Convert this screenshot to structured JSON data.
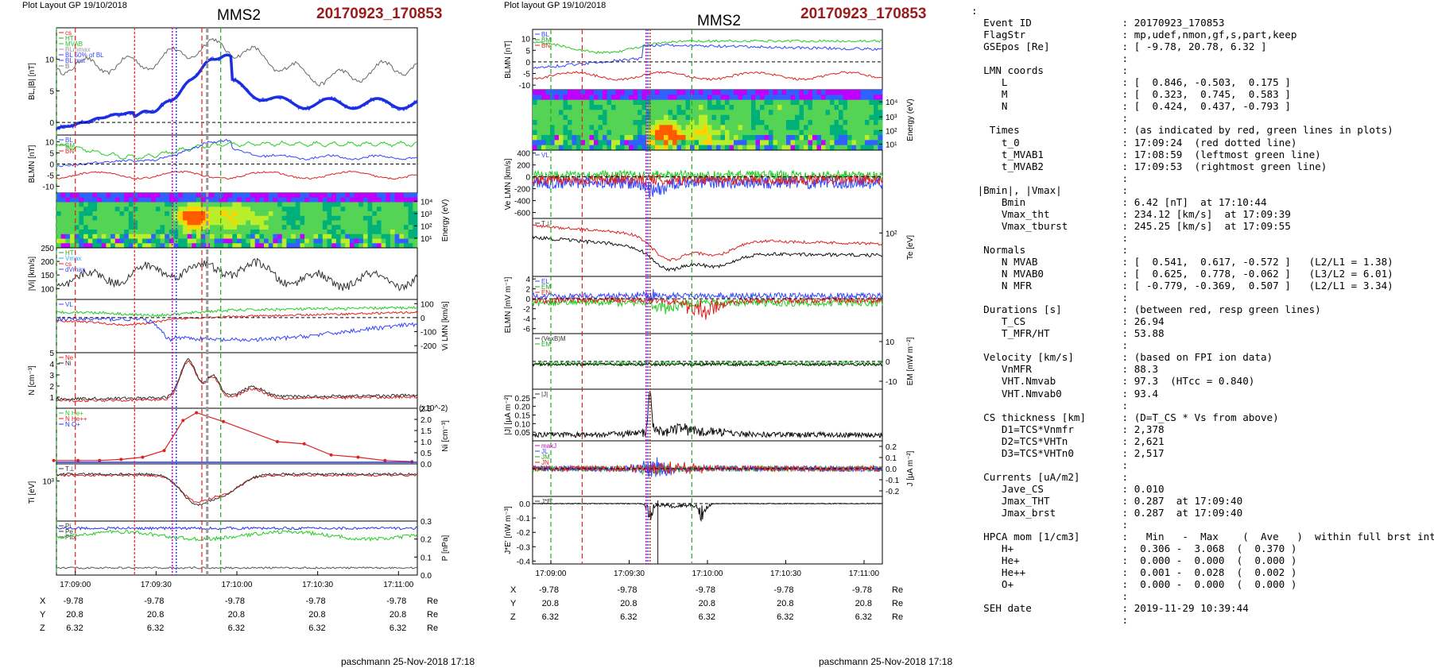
{
  "left": {
    "header_left": "Plot Layout GP 19/10/2018",
    "title": "MMS2",
    "event": "20170923_170853",
    "footer": "paschmann 25-Nov-2018 17:18",
    "time_ticks": [
      "17:09:00",
      "17:09:30",
      "17:10:00",
      "17:10:30",
      "17:11:00"
    ],
    "pos": [
      {
        "name": "X",
        "vals": [
          "-9.78",
          "-9.78",
          "-9.78",
          "-9.78",
          "-9.78"
        ],
        "unit": "Re"
      },
      {
        "name": "Y",
        "vals": [
          "20.8",
          "20.8",
          "20.8",
          "20.8",
          "20.8"
        ],
        "unit": "Re"
      },
      {
        "name": "Z",
        "vals": [
          "6.32",
          "6.32",
          "6.32",
          "6.32",
          "6.32"
        ],
        "unit": "Re"
      }
    ]
  },
  "middle": {
    "header_left": "Plot layout GP 19/10/2018",
    "title": "MMS2",
    "event": "20170923_170853",
    "footer": "paschmann 25-Nov-2018 17:18",
    "time_ticks": [
      "17:09:00",
      "17:09:30",
      "17:10:00",
      "17:10:30",
      "17:11:00"
    ],
    "pos": [
      {
        "name": "X",
        "vals": [
          "-9.78",
          "-9.78",
          "-9.78",
          "-9.78",
          "-9.78"
        ],
        "unit": "Re"
      },
      {
        "name": "Y",
        "vals": [
          "20.8",
          "20.8",
          "20.8",
          "20.8",
          "20.8"
        ],
        "unit": "Re"
      },
      {
        "name": "Z",
        "vals": [
          "6.32",
          "6.32",
          "6.32",
          "6.32",
          "6.32"
        ],
        "unit": "Re"
      }
    ]
  },
  "chart_data": [
    {
      "type": "line",
      "title": "MMS2",
      "subtitle": "20170923_170853",
      "x_range": [
        "17:08:53",
        "17:11:07"
      ],
      "x_ticks": [
        "17:09:00",
        "17:09:30",
        "17:10:00",
        "17:10:30",
        "17:11:00"
      ],
      "panels": [
        {
          "ylabel": "BL,|B| [nT]",
          "ylim": [
            -2,
            15
          ],
          "y_ticks": [
            0,
            5,
            10
          ],
          "legend": [
            "cs",
            "HT",
            "MVAB",
            "BLmmax",
            "BL 50% of BL",
            "BL brst",
            "B"
          ]
        },
        {
          "ylabel": "BLMN [nT]",
          "ylim": [
            -13,
            13
          ],
          "y_ticks": [
            -10,
            -5,
            0,
            5,
            10
          ],
          "legend": [
            "BL",
            "BM",
            "BN"
          ]
        },
        {
          "ylabel": "Energy (eV)",
          "type": "heatmap",
          "y_ticks": [
            "10^1",
            "10^2",
            "10^3",
            "10^4"
          ]
        },
        {
          "ylabel": "|Vi| [km/s]",
          "ylim": [
            60,
            250
          ],
          "y_ticks": [
            100,
            150,
            200,
            250
          ],
          "legend": [
            "HT",
            "Vmax",
            "cs",
            "dVmax"
          ]
        },
        {
          "ylabel": "Vi LMN [km/s]",
          "ylim": [
            -250,
            130
          ],
          "y_ticks": [
            100,
            0,
            -100,
            -200
          ],
          "legend": [
            "VL"
          ]
        },
        {
          "ylabel": "N [cm^-3]",
          "ylim": [
            0,
            5
          ],
          "y_ticks": [
            1,
            2,
            3,
            4,
            5
          ],
          "legend": [
            "Ne",
            "Ni"
          ]
        },
        {
          "ylabel": "Ni [cm^-3]",
          "ylim": [
            0,
            2.5
          ],
          "y_ticks": [
            0.0,
            0.5,
            1.0,
            1.5,
            2.0,
            2.5
          ],
          "y_scale_label": "(x10^-2)",
          "legend": [
            "N He+",
            "N He++",
            "N O+"
          ],
          "series": [
            {
              "name": "N He++",
              "x": [
                -8,
                1,
                9,
                17,
                25,
                33,
                40,
                45,
                55,
                75,
                85,
                95,
                105,
                115,
                125
              ],
              "y": [
                0.15,
                0.15,
                0.15,
                0.2,
                0.3,
                0.6,
                1.95,
                2.3,
                1.9,
                1.0,
                0.9,
                0.4,
                0.3,
                0.15,
                0.1
              ]
            }
          ]
        },
        {
          "ylabel": "Ti [eV]",
          "y_ticks": [
            "10^3"
          ],
          "legend": [
            "T⊥"
          ]
        },
        {
          "ylabel": "P [nPa]",
          "ylim": [
            0,
            0.3
          ],
          "y_ticks": [
            0.0,
            0.1,
            0.2,
            0.3
          ],
          "legend": [
            "Pi",
            "Pe",
            "Ptot"
          ]
        }
      ],
      "markers": {
        "red_dashed_s": [
          -7,
          22,
          45,
          48
        ],
        "green_dashed_s": [
          -7,
          48,
          67,
          78
        ],
        "magenta_s": [
          36,
          37
        ]
      }
    },
    {
      "type": "line",
      "title": "MMS2",
      "subtitle": "20170923_170853",
      "x_ticks": [
        "17:09:00",
        "17:09:30",
        "17:10:00",
        "17:10:30",
        "17:11:00"
      ],
      "panels": [
        {
          "ylabel": "BLMN [nT]",
          "ylim": [
            -12,
            14
          ],
          "y_ticks": [
            -10,
            -5,
            0,
            5,
            10
          ],
          "legend": [
            "BL",
            "BM",
            "BN"
          ]
        },
        {
          "ylabel": "Energy (eV)",
          "type": "heatmap",
          "y_ticks": [
            "10^1",
            "10^2",
            "10^3",
            "10^4"
          ]
        },
        {
          "ylabel": "Ve LMN [km/s]",
          "ylim": [
            -700,
            450
          ],
          "y_ticks": [
            -600,
            -400,
            -200,
            0,
            200,
            400
          ],
          "legend": [
            "VL"
          ]
        },
        {
          "ylabel": "Te [eV]",
          "y_ticks": [
            "10^2"
          ],
          "legend": [
            "T⊥"
          ]
        },
        {
          "ylabel": "ELMN [mV m^-1]",
          "ylim": [
            -7,
            4.5
          ],
          "y_ticks": [
            -6,
            -4,
            -2,
            0,
            2,
            4
          ],
          "legend": [
            "EL",
            "EM",
            "EN"
          ]
        },
        {
          "ylabel": "EM [mW m^-2]",
          "ylim": [
            -14,
            14
          ],
          "y_ticks": [
            -10,
            0,
            10
          ],
          "legend": [
            "(VexB)M",
            "EM"
          ]
        },
        {
          "ylabel": "|J| [µA m^-2]",
          "ylim": [
            0,
            0.3
          ],
          "y_ticks": [
            0.05,
            0.1,
            0.15,
            0.2,
            0.25
          ],
          "legend": [
            "|J|"
          ]
        },
        {
          "ylabel": "J [µA m^-2]",
          "ylim": [
            -0.25,
            0.25
          ],
          "y_ticks": [
            0.2,
            0.1,
            0.0,
            -0.1,
            -0.2
          ],
          "legend": [
            "maxJ",
            "JL",
            "JM",
            "JN"
          ]
        },
        {
          "ylabel": "J*E' [nW m^-3]",
          "ylim": [
            -0.42,
            0.05
          ],
          "y_ticks": [
            0.0,
            -0.1,
            -0.2,
            -0.3,
            -0.4
          ],
          "legend": [
            "J*E'"
          ]
        }
      ]
    }
  ],
  "info_lines": [
    ":",
    "  Event ID               : 20170923_170853",
    "  FlagStr                : mp,udef,nmon,gf,s,part,keep",
    "  GSEpos [Re]            : [ -9.78, 20.78, 6.32 ]",
    "                         :",
    "  LMN coords             :",
    "     L                   : [  0.846, -0.503,  0.175 ]",
    "     M                   : [  0.323,  0.745,  0.583 ]",
    "     N                   : [  0.424,  0.437, -0.793 ]",
    "                         :",
    "   Times                 : (as indicated by red, green lines in plots)",
    "     t_0                 : 17:09:24  (red dotted line)",
    "     t_MVAB1             : 17:08:59  (leftmost green line)",
    "     t_MVAB2             : 17:09:53  (rightmost green line)",
    "                         :",
    " |Bmin|, |Vmax|          :",
    "     Bmin                : 6.42 [nT]  at 17:10:44",
    "     Vmax_tht            : 234.12 [km/s]  at 17:09:39",
    "     Vmax_tburst         : 245.25 [km/s]  at 17:09:55",
    "                         :",
    "  Normals                :",
    "     N MVAB              : [  0.541,  0.617, -0.572 ]   (L2/L1 = 1.38)",
    "     N MVAB0             : [  0.625,  0.778, -0.062 ]   (L3/L2 = 6.01)",
    "     N MFR               : [ -0.779, -0.369,  0.507 ]   (L2/L1 = 3.34)",
    "                         :",
    "  Durations [s]          : (between red, resp green lines)",
    "     T_CS                : 26.94",
    "     T_MFR/HT            : 53.88",
    "                         :",
    "  Velocity [km/s]        : (based on FPI ion data)",
    "     VnMFR               : 88.3",
    "     VHT.Nmvab           : 97.3  (HTcc = 0.840)",
    "     VHT.Nmvab0          : 93.4",
    "                         :",
    "  CS thickness [km]      : (D=T_CS * Vs from above)",
    "     D1=TCS*Vnmfr        : 2,378",
    "     D2=TCS*VHTn         : 2,621",
    "     D3=TCS*VHTn0        : 2,517",
    "                         :",
    "  Currents [uA/m2]       :",
    "     Jave_CS             : 0.010",
    "     Jmax_THT            : 0.287  at 17:09:40",
    "     Jmax_brst           : 0.287  at 17:09:40",
    "                         :",
    "  HPCA mom [1/cm3]       :   Min   -  Max    (  Ave   )  within full brst int",
    "     H+                  :  0.306 -  3.068  (  0.370 )",
    "     He+                 :  0.000 -  0.000  (  0.000 )",
    "     He++                :  0.001 -  0.028  (  0.002 )",
    "     O+                  :  0.000 -  0.000  (  0.000 )",
    "                         :",
    "  SEH date               : 2019-11-29 10:39:44",
    "                         :"
  ]
}
